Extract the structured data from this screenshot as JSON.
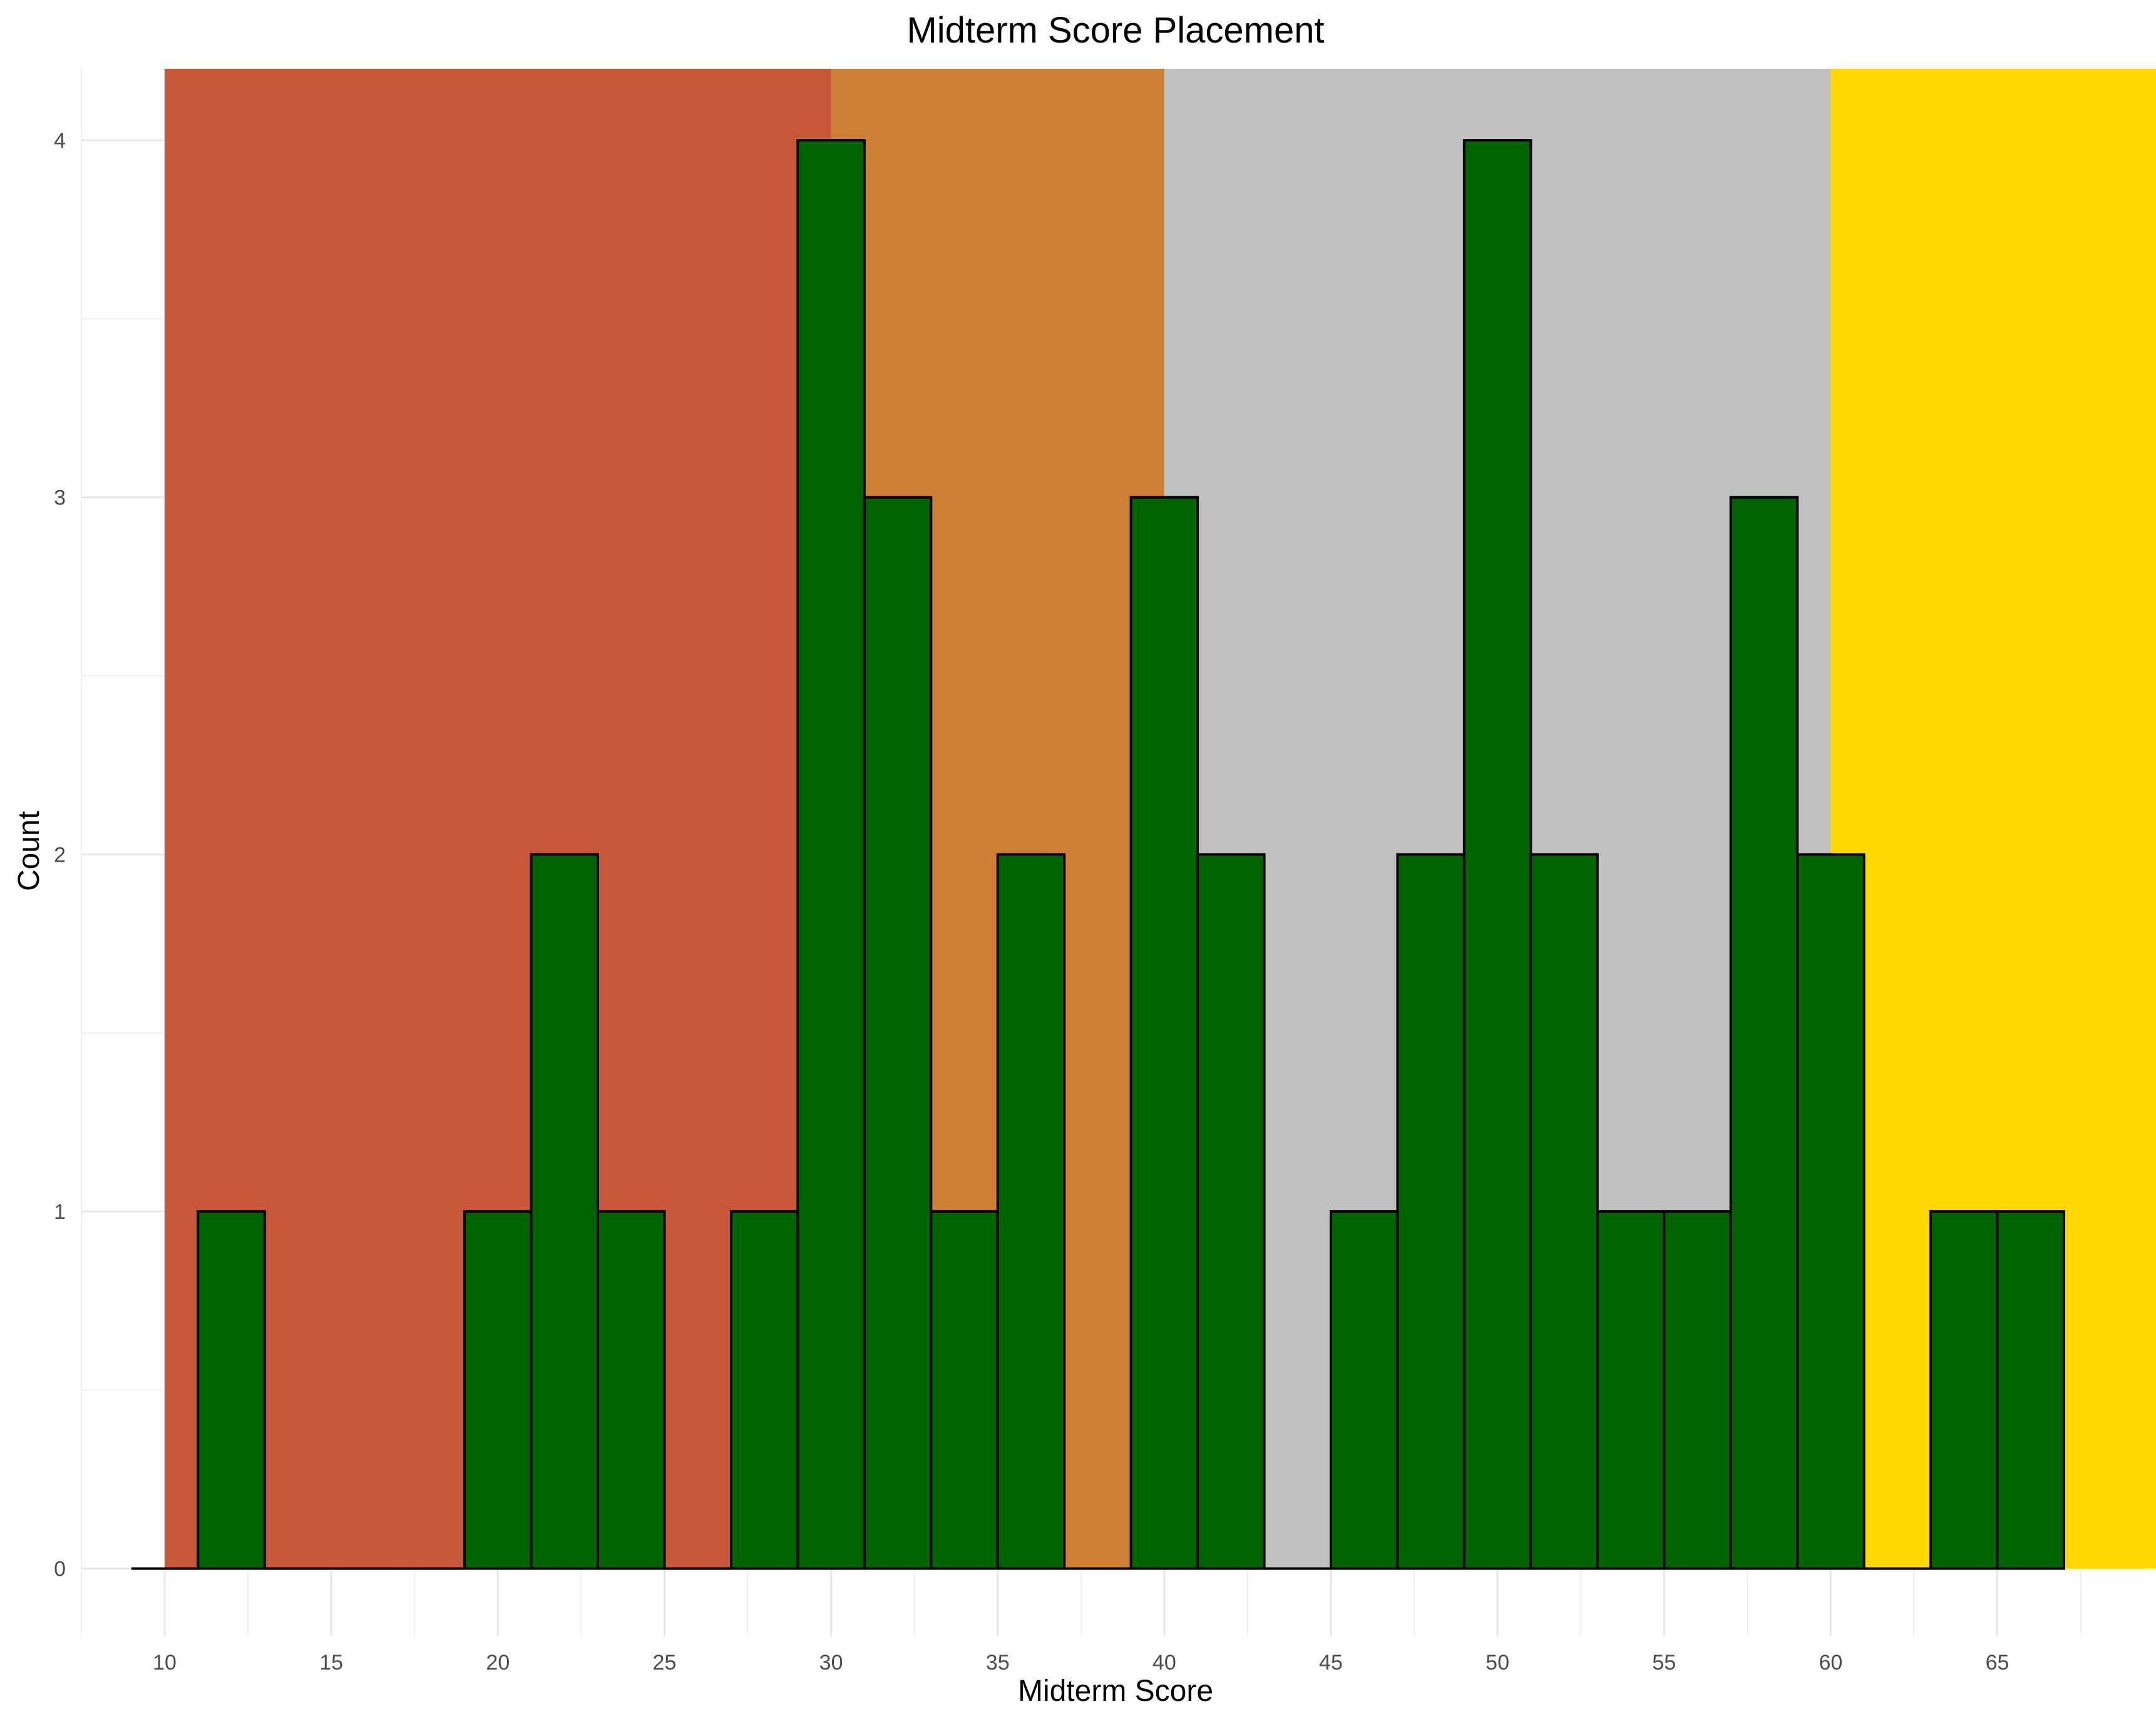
{
  "chart_data": {
    "type": "bar",
    "subtype": "histogram",
    "title": "Midterm Score Placement",
    "xlabel": "Midterm Score",
    "ylabel": "Count",
    "xlim": [
      7.5,
      69.5
    ],
    "ylim": [
      -0.19,
      4.2
    ],
    "x_ticks": [
      10,
      15,
      20,
      25,
      30,
      35,
      40,
      45,
      50,
      55,
      60,
      65
    ],
    "y_ticks": [
      0,
      1,
      2,
      3,
      4
    ],
    "grid": true,
    "bin_width": 2,
    "bins": [
      {
        "center": 10,
        "count": 0
      },
      {
        "center": 12,
        "count": 1
      },
      {
        "center": 14,
        "count": 0
      },
      {
        "center": 16,
        "count": 0
      },
      {
        "center": 18,
        "count": 0
      },
      {
        "center": 20,
        "count": 1
      },
      {
        "center": 22,
        "count": 2
      },
      {
        "center": 24,
        "count": 1
      },
      {
        "center": 26,
        "count": 0
      },
      {
        "center": 28,
        "count": 1
      },
      {
        "center": 30,
        "count": 4
      },
      {
        "center": 32,
        "count": 3
      },
      {
        "center": 34,
        "count": 1
      },
      {
        "center": 36,
        "count": 2
      },
      {
        "center": 38,
        "count": 0
      },
      {
        "center": 40,
        "count": 3
      },
      {
        "center": 42,
        "count": 2
      },
      {
        "center": 44,
        "count": 0
      },
      {
        "center": 46,
        "count": 1
      },
      {
        "center": 48,
        "count": 2
      },
      {
        "center": 50,
        "count": 4
      },
      {
        "center": 52,
        "count": 2
      },
      {
        "center": 54,
        "count": 1
      },
      {
        "center": 56,
        "count": 1
      },
      {
        "center": 58,
        "count": 3
      },
      {
        "center": 60,
        "count": 2
      },
      {
        "center": 62,
        "count": 0
      },
      {
        "center": 64,
        "count": 1
      },
      {
        "center": 66,
        "count": 1
      }
    ],
    "background_bands": [
      {
        "from": 10,
        "to": 30,
        "color": "#C8573A"
      },
      {
        "from": 30,
        "to": 40,
        "color": "#CD8033"
      },
      {
        "from": 40,
        "to": 60,
        "color": "#C0C0C0"
      },
      {
        "from": 60,
        "to": 70,
        "color": "#FFD700"
      }
    ],
    "bar_fill": "#006400",
    "bar_stroke": "#000000"
  }
}
